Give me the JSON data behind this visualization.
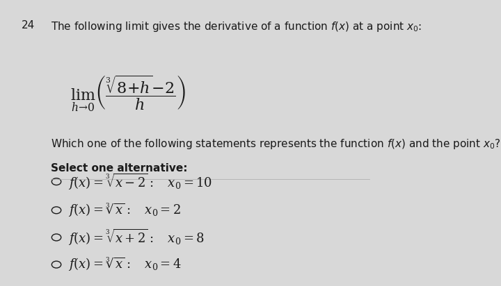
{
  "question_number": "24",
  "background_color": "#d8d8d8",
  "text_color": "#1a1a1a",
  "title_line": "The following limit gives the derivative of a function $f(x)$ at a point $x_0$:",
  "limit_expression": "$\\lim_{h \\to 0}\\left(\\dfrac{\\sqrt[3]{8+h}-2}{h}\\right)$",
  "question_line": "Which one of the following statements represents the function $f(x)$ and the point $x_0$?",
  "bold_line": "Select one alternative:",
  "options": [
    "$f(x) = \\sqrt[3]{x-2}:\\quad x_0 = 10$",
    "$f(x) = \\sqrt[3]{x}:\\quad x_0 = 2$",
    "$f(x) = \\sqrt[3]{x+2}:\\quad x_0 = 8$",
    "$f(x) = \\sqrt[3]{x}:\\quad x_0 = 4$"
  ],
  "font_size_text": 11,
  "font_size_limit": 16,
  "font_size_options": 13
}
